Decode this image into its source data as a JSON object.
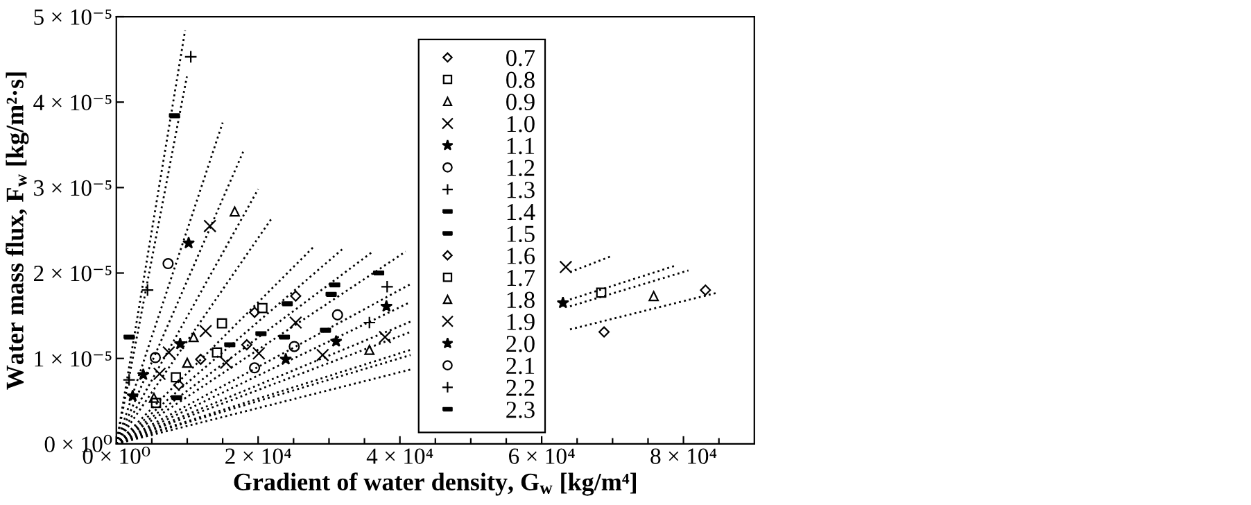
{
  "chart_data": {
    "type": "scatter",
    "xlabel": "Gradient of water density, G$_{w}$ [kg/m⁴]",
    "ylabel": "Water mass flux, F$_{w}$ [kg/m²·s]",
    "xlim": [
      0,
      90000
    ],
    "ylim": [
      0,
      5e-05
    ],
    "xticks": [
      {
        "value": 0,
        "label": "0 × 10⁰"
      },
      {
        "value": 5000,
        "label": null
      },
      {
        "value": 10000,
        "label": null
      },
      {
        "value": 15000,
        "label": null
      },
      {
        "value": 20000,
        "label": "2 × 10⁴"
      },
      {
        "value": 25000,
        "label": null
      },
      {
        "value": 30000,
        "label": null
      },
      {
        "value": 35000,
        "label": null
      },
      {
        "value": 40000,
        "label": "4 × 10⁴"
      },
      {
        "value": 45000,
        "label": null
      },
      {
        "value": 50000,
        "label": null
      },
      {
        "value": 55000,
        "label": null
      },
      {
        "value": 60000,
        "label": "6 × 10⁴"
      },
      {
        "value": 65000,
        "label": null
      },
      {
        "value": 70000,
        "label": null
      },
      {
        "value": 75000,
        "label": null
      },
      {
        "value": 80000,
        "label": "8 × 10⁴"
      },
      {
        "value": 85000,
        "label": null
      }
    ],
    "yticks": [
      {
        "value": 0,
        "label": "0 × 10⁰"
      },
      {
        "value": 1e-05,
        "label": "1 × 10⁻⁵"
      },
      {
        "value": 2e-05,
        "label": "2 × 10⁻⁵"
      },
      {
        "value": 3e-05,
        "label": "3 × 10⁻⁵"
      },
      {
        "value": 4e-05,
        "label": "4 × 10⁻⁵"
      },
      {
        "value": 5e-05,
        "label": "5 × 10⁻⁵"
      }
    ],
    "grid": false,
    "legend": "right",
    "series": [
      {
        "name": "0.7",
        "color": "#000000",
        "marker": "diamond",
        "x": [
          83100,
          68800
        ],
        "values": [
          1.8e-05,
          1.31e-05
        ]
      },
      {
        "name": "0.8",
        "color": "#000000",
        "marker": "square",
        "x": [
          68400
        ],
        "values": [
          1.77e-05
        ]
      },
      {
        "name": "0.9",
        "color": "#000000",
        "marker": "triangle",
        "x": [
          35700,
          75800
        ],
        "values": [
          1.1e-05,
          1.73e-05
        ]
      },
      {
        "name": "1.0",
        "color": "#000000",
        "marker": "cross",
        "x": [
          63400,
          37900,
          29100,
          25300,
          20100,
          15500
        ],
        "values": [
          2.07e-05,
          1.25e-05,
          1.04e-05,
          1.42e-05,
          1.06e-05,
          9.5e-06
        ]
      },
      {
        "name": "1.1",
        "color": "#000000",
        "marker": "star",
        "x": [
          38100,
          31000,
          23900,
          63000
        ],
        "values": [
          1.61e-05,
          1.2e-05,
          9.9e-06,
          1.65e-05
        ]
      },
      {
        "name": "1.2",
        "color": "#000000",
        "marker": "circle",
        "x": [
          31200,
          25100,
          19500
        ],
        "values": [
          1.51e-05,
          1.14e-05,
          8.9e-06
        ]
      },
      {
        "name": "1.3",
        "color": "#000000",
        "marker": "plus",
        "x": [
          38200,
          35700
        ],
        "values": [
          1.84e-05,
          1.42e-05
        ]
      },
      {
        "name": "1.4",
        "color": "#000000",
        "x": [
          30300,
          37000,
          29500,
          23700,
          20400,
          16000,
          8500
        ],
        "values": [
          1.75e-05,
          2e-05,
          1.33e-05,
          1.25e-05,
          1.29e-05,
          1.16e-05,
          5.4e-06
        ]
      },
      {
        "name": "1.5",
        "color": "#000000",
        "x": [
          24100,
          30800
        ],
        "values": [
          1.64e-05,
          1.86e-05
        ]
      },
      {
        "name": "1.6",
        "color": "#000000",
        "marker": "diamond",
        "x": [
          19500,
          25300,
          18400,
          11900,
          8800
        ],
        "values": [
          1.54e-05,
          1.73e-05,
          1.16e-05,
          9.9e-06,
          6.9e-06
        ]
      },
      {
        "name": "1.7",
        "color": "#000000",
        "marker": "square",
        "x": [
          14900,
          20600,
          14200,
          8400,
          5600
        ],
        "values": [
          1.41e-05,
          1.59e-05,
          1.07e-05,
          7.8e-06,
          4.8e-06
        ]
      },
      {
        "name": "1.8",
        "color": "#000000",
        "marker": "triangle",
        "x": [
          16700,
          10900,
          10000,
          5300
        ],
        "values": [
          2.72e-05,
          1.25e-05,
          9.5e-06,
          5.4e-06
        ]
      },
      {
        "name": "1.9",
        "color": "#000000",
        "marker": "cross",
        "x": [
          13200,
          7400,
          6100,
          12600
        ],
        "values": [
          2.55e-05,
          1.07e-05,
          8.2e-06,
          1.32e-05
        ]
      },
      {
        "name": "2.0",
        "color": "#000000",
        "marker": "star",
        "x": [
          10200,
          3800,
          2300,
          9000
        ],
        "values": [
          2.35e-05,
          8.1e-06,
          5.6e-06,
          1.17e-05
        ]
      },
      {
        "name": "2.1",
        "color": "#000000",
        "marker": "circle",
        "x": [
          7300,
          5500
        ],
        "values": [
          2.11e-05,
          1.01e-05
        ]
      },
      {
        "name": "2.2",
        "color": "#000000",
        "marker": "plus",
        "x": [
          10500,
          4400,
          1800
        ],
        "values": [
          4.53e-05,
          1.8e-05,
          7.5e-06
        ]
      },
      {
        "name": "2.3",
        "color": "#000000",
        "x": [
          8200,
          1800
        ],
        "values": [
          3.84e-05,
          1.25e-05
        ]
      },
      {
        "type": "line",
        "color": "#000000",
        "line_style": "dotted",
        "marker": "none",
        "x": [
          0,
          41500,
          52000,
          64000,
          84800
        ],
        "values": [
          0,
          8.7e-06,
          null,
          1.34e-05,
          1.77e-05
        ]
      },
      {
        "type": "line",
        "color": "#000000",
        "line_style": "dotted",
        "marker": "none",
        "x": [
          0,
          41500,
          52000,
          64000,
          80700
        ],
        "values": [
          0,
          1.04e-05,
          null,
          1.61e-05,
          2.03e-05
        ]
      },
      {
        "type": "line",
        "color": "#000000",
        "line_style": "dotted",
        "marker": "none",
        "x": [
          0,
          41500,
          52000,
          64000,
          79000
        ],
        "values": [
          0,
          1.1e-05,
          null,
          1.69e-05,
          2.09e-05
        ]
      },
      {
        "type": "line",
        "color": "#000000",
        "line_style": "dotted",
        "marker": "none",
        "x": [
          0,
          41500,
          52000,
          64000,
          69900
        ],
        "values": [
          0,
          1.31e-05,
          null,
          2.01e-05,
          2.2e-05
        ]
      },
      {
        "type": "line",
        "color": "#000000",
        "line_style": "dotted",
        "marker": "none",
        "x": [
          0,
          41500
        ],
        "values": [
          0,
          1.43e-05
        ]
      },
      {
        "type": "line",
        "color": "#000000",
        "line_style": "dotted",
        "marker": "none",
        "x": [
          0,
          41500
        ],
        "values": [
          0,
          1.66e-05
        ]
      },
      {
        "type": "line",
        "color": "#000000",
        "line_style": "dotted",
        "marker": "none",
        "x": [
          0,
          41500
        ],
        "values": [
          0,
          1.87e-05
        ]
      },
      {
        "type": "line",
        "color": "#000000",
        "line_style": "dotted",
        "marker": "none",
        "x": [
          0,
          40800
        ],
        "values": [
          0,
          2.25e-05
        ]
      },
      {
        "type": "line",
        "color": "#000000",
        "line_style": "dotted",
        "marker": "none",
        "x": [
          0,
          36000
        ],
        "values": [
          0,
          2.24e-05
        ]
      },
      {
        "type": "line",
        "color": "#000000",
        "line_style": "dotted",
        "marker": "none",
        "x": [
          0,
          31900
        ],
        "values": [
          0,
          2.28e-05
        ]
      },
      {
        "type": "line",
        "color": "#000000",
        "line_style": "dotted",
        "marker": "none",
        "x": [
          0,
          28000
        ],
        "values": [
          0,
          2.32e-05
        ]
      },
      {
        "type": "line",
        "color": "#000000",
        "line_style": "dotted",
        "marker": "none",
        "x": [
          0,
          22000
        ],
        "values": [
          0,
          2.65e-05
        ]
      },
      {
        "type": "line",
        "color": "#000000",
        "line_style": "dotted",
        "marker": "none",
        "x": [
          0,
          20000
        ],
        "values": [
          0,
          2.98e-05
        ]
      },
      {
        "type": "line",
        "color": "#000000",
        "line_style": "dotted",
        "marker": "none",
        "x": [
          0,
          18000
        ],
        "values": [
          0,
          3.44e-05
        ]
      },
      {
        "type": "line",
        "color": "#000000",
        "line_style": "dotted",
        "marker": "none",
        "x": [
          0,
          15000
        ],
        "values": [
          0,
          3.76e-05
        ]
      },
      {
        "type": "line",
        "color": "#000000",
        "line_style": "dotted",
        "marker": "none",
        "x": [
          0,
          9950
        ],
        "values": [
          0,
          4.3e-05
        ]
      },
      {
        "type": "line",
        "color": "#000000",
        "line_style": "dotted",
        "marker": "none",
        "x": [
          0,
          9700
        ],
        "values": [
          0,
          4.84e-05
        ]
      }
    ]
  }
}
